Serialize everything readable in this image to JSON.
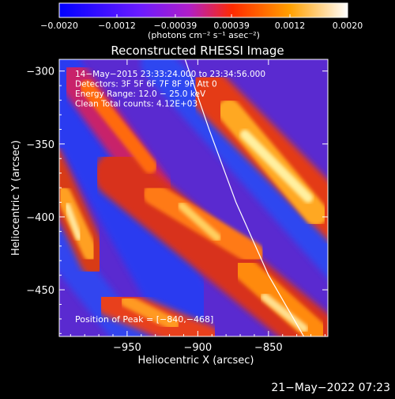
{
  "chart_data": {
    "type": "heatmap",
    "title": "Reconstructed RHESSI Image",
    "xlabel": "Heliocentric X (arcsec)",
    "ylabel": "Heliocentric Y (arcsec)",
    "xlim": [
      -998,
      -808
    ],
    "ylim": [
      -482,
      -292
    ],
    "x_ticks": [
      -950,
      -900,
      -850
    ],
    "x_tick_labels": [
      "−950",
      "−900",
      "−850"
    ],
    "y_ticks": [
      -300,
      -350,
      -400,
      -450
    ],
    "y_tick_labels": [
      "−300",
      "−350",
      "−400",
      "−450"
    ],
    "colorbar": {
      "min": -0.002,
      "max": 0.002,
      "ticks": [
        -0.002,
        -0.0012,
        -0.00039,
        0.00039,
        0.0012,
        0.002
      ],
      "tick_labels": [
        "−0.0020",
        "−0.0012",
        "−0.00039",
        "0.00039",
        "0.0012",
        "0.0020"
      ],
      "unit_label": "(photons cm⁻² s⁻¹ asec⁻²)",
      "colors": [
        "#0000ff",
        "#7a1fff",
        "#c81eb4",
        "#ff3200",
        "#ff9600",
        "#ffffff"
      ]
    },
    "annotations": [
      "14−May−2015 23:33:24.000 to 23:34:56.000",
      "Detectors: 3F 5F 6F 7F 8F 9F Att 0",
      "Energy Range: 12.0 − 25.0 keV",
      "Clean     Total counts: 4.12E+03"
    ],
    "peak_label": "Position of Peak = [−840,−468]",
    "peak": [
      -840,
      -468
    ],
    "limb_curve": [
      [
        -909,
        -292
      ],
      [
        -892,
        -340
      ],
      [
        -873,
        -390
      ],
      [
        -850,
        -440
      ],
      [
        -825,
        -482
      ]
    ],
    "limb_color": "#ffffff"
  },
  "footer": {
    "date_stamp": "21−May−2022 07:23"
  }
}
